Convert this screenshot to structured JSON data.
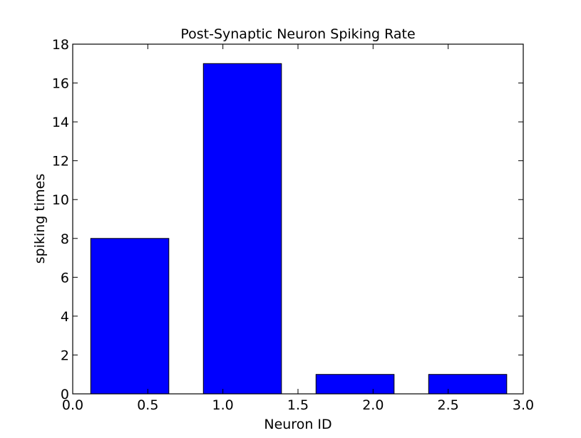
{
  "chart_data": {
    "type": "bar",
    "title": "Post-Synaptic Neuron Spiking Rate",
    "xlabel": "Neuron ID",
    "ylabel": "spiking times",
    "xlim": [
      0.0,
      3.0
    ],
    "ylim": [
      0,
      18
    ],
    "xticks": [
      "0.0",
      "0.5",
      "1.0",
      "1.5",
      "2.0",
      "2.5",
      "3.0"
    ],
    "yticks": [
      "0",
      "2",
      "4",
      "6",
      "8",
      "10",
      "12",
      "14",
      "16",
      "18"
    ],
    "bars": [
      {
        "x_start": 0.12,
        "x_end": 0.64,
        "value": 8
      },
      {
        "x_start": 0.87,
        "x_end": 1.39,
        "value": 17
      },
      {
        "x_start": 1.62,
        "x_end": 2.14,
        "value": 1
      },
      {
        "x_start": 2.37,
        "x_end": 2.89,
        "value": 1
      }
    ],
    "bar_color": "#0000ff",
    "grid": false,
    "legend": "none"
  }
}
